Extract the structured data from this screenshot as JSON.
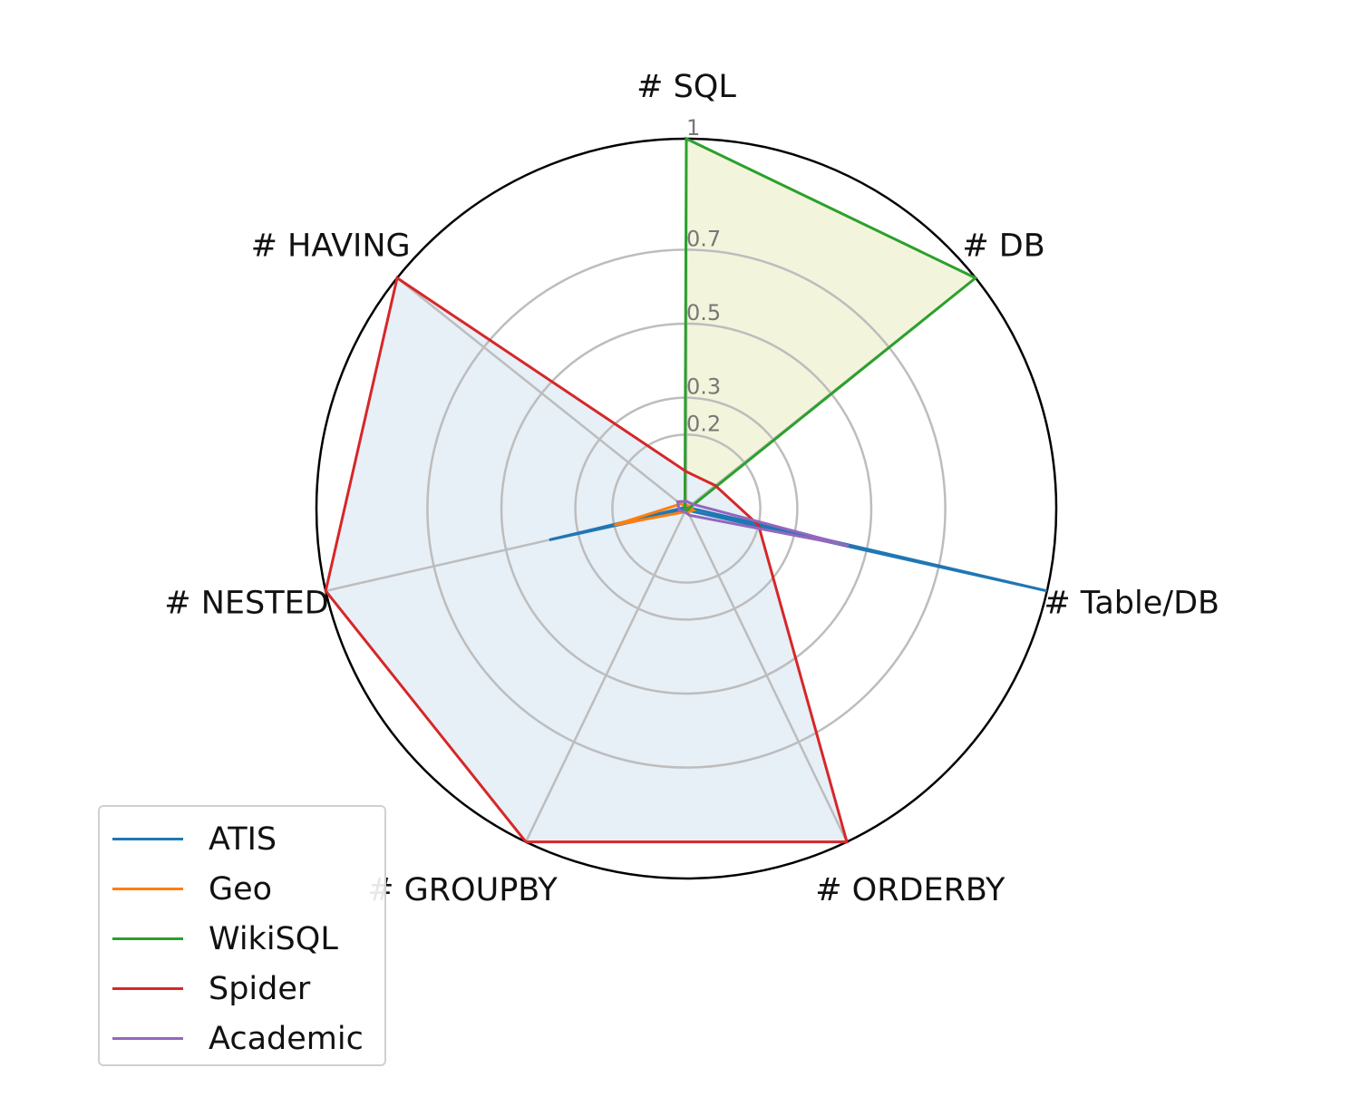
{
  "chart_data": {
    "type": "radar",
    "axes": [
      "# SQL",
      "# DB",
      "# Table/DB",
      "# ORDERBY",
      "# GROUPBY",
      "# NESTED",
      "# HAVING"
    ],
    "radial_ticks": [
      "1",
      "0.7",
      "0.5",
      "0.3",
      "0.2"
    ],
    "tick_values": [
      1,
      0.7,
      0.5,
      0.3,
      0.2
    ],
    "ylim": [
      0,
      1
    ],
    "grid": true,
    "legend_position": "bottom-left",
    "series": [
      {
        "name": "ATIS",
        "color": "#1f77b4",
        "values": [
          0.005,
          0.005,
          1.0,
          0.005,
          0.005,
          0.38,
          0.005
        ],
        "fill": false
      },
      {
        "name": "Geo",
        "color": "#ff7f0e",
        "values": [
          0.01,
          0.01,
          0.02,
          0.01,
          0.01,
          0.2,
          0.02
        ],
        "fill": false
      },
      {
        "name": "WikiSQL",
        "color": "#2ca02c",
        "values": [
          1.0,
          1.0,
          0.005,
          0.005,
          0.005,
          0.005,
          0.005
        ],
        "fill": true,
        "fill_color": "#f2f5dc"
      },
      {
        "name": "Spider",
        "color": "#d62728",
        "values": [
          0.1,
          0.1,
          0.2,
          1.0,
          1.0,
          1.0,
          1.0
        ],
        "fill": true,
        "fill_color": "#e7eff7"
      },
      {
        "name": "Academic",
        "color": "#9467bd",
        "values": [
          0.02,
          0.02,
          0.45,
          0.02,
          0.01,
          0.02,
          0.03
        ],
        "fill": false
      }
    ]
  }
}
